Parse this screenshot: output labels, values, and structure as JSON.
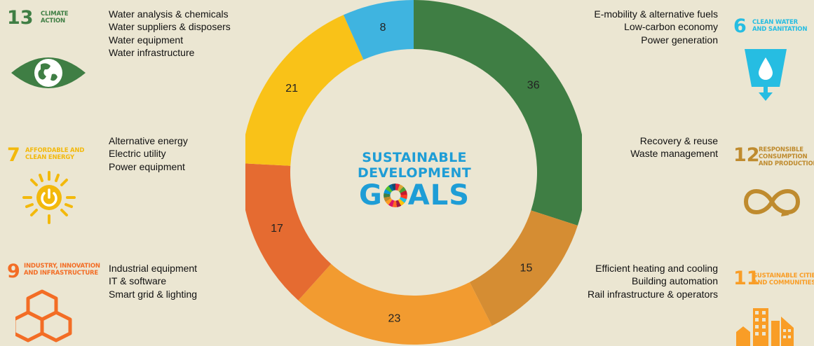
{
  "colors": {
    "background": "#ebe6d2",
    "climate_action": "#3f7e44",
    "clean_water": "#26bde2",
    "affordable_energy": "#fcc30b",
    "consumption": "#bf8b2e",
    "industry": "#fd6925",
    "cities": "#fd9d24",
    "logo_blue": "#1e9dd6"
  },
  "sdgs": {
    "sdg13": {
      "number": "13",
      "title": "CLIMATE\nACTION",
      "icon": "eye-globe-icon"
    },
    "sdg7": {
      "number": "7",
      "title": "AFFORDABLE AND\nCLEAN ENERGY",
      "icon": "sun-power-icon"
    },
    "sdg9": {
      "number": "9",
      "title": "INDUSTRY, INNOVATION\nAND INFRASTRUCTURE",
      "icon": "cubes-icon"
    },
    "sdg6": {
      "number": "6",
      "title": "CLEAN WATER\nAND SANITATION",
      "icon": "water-glass-icon"
    },
    "sdg12": {
      "number": "12",
      "title": "RESPONSIBLE\nCONSUMPTION\nAND PRODUCTION",
      "icon": "infinity-icon"
    },
    "sdg11": {
      "number": "11",
      "title": "SUSTAINABLE CITIES\nAND COMMUNITIES",
      "icon": "buildings-icon"
    }
  },
  "lists": {
    "climate": [
      "Water analysis & chemicals",
      "Water suppliers & disposers",
      "Water equipment",
      "Water infrastructure"
    ],
    "energy": [
      "Alternative energy",
      "Electric utility",
      "Power equipment"
    ],
    "industry": [
      "Industrial equipment",
      "IT & software",
      "Smart grid & lighting"
    ],
    "water": [
      "E-mobility & alternative fuels",
      "Low-carbon economy",
      "Power generation"
    ],
    "consumption": [
      "Recovery & reuse",
      "Waste management"
    ],
    "cities": [
      "Efficient heating and cooling",
      "Building automation",
      "Rail infrastructure & operators"
    ]
  },
  "logo": {
    "line1": "SUSTAINABLE",
    "line2": "DEVELOPMENT",
    "line3a": "G",
    "line3b": "ALS"
  },
  "chart_data": {
    "type": "pie",
    "style": "donut",
    "slices": [
      {
        "value": 36,
        "color": "#3f7e44"
      },
      {
        "value": 15,
        "color": "#d58d33"
      },
      {
        "value": 23,
        "color": "#f29b30"
      },
      {
        "value": 17,
        "color": "#e56b31"
      },
      {
        "value": 21,
        "color": "#f9c218"
      },
      {
        "value": 8,
        "color": "#3fb4e0"
      }
    ]
  }
}
